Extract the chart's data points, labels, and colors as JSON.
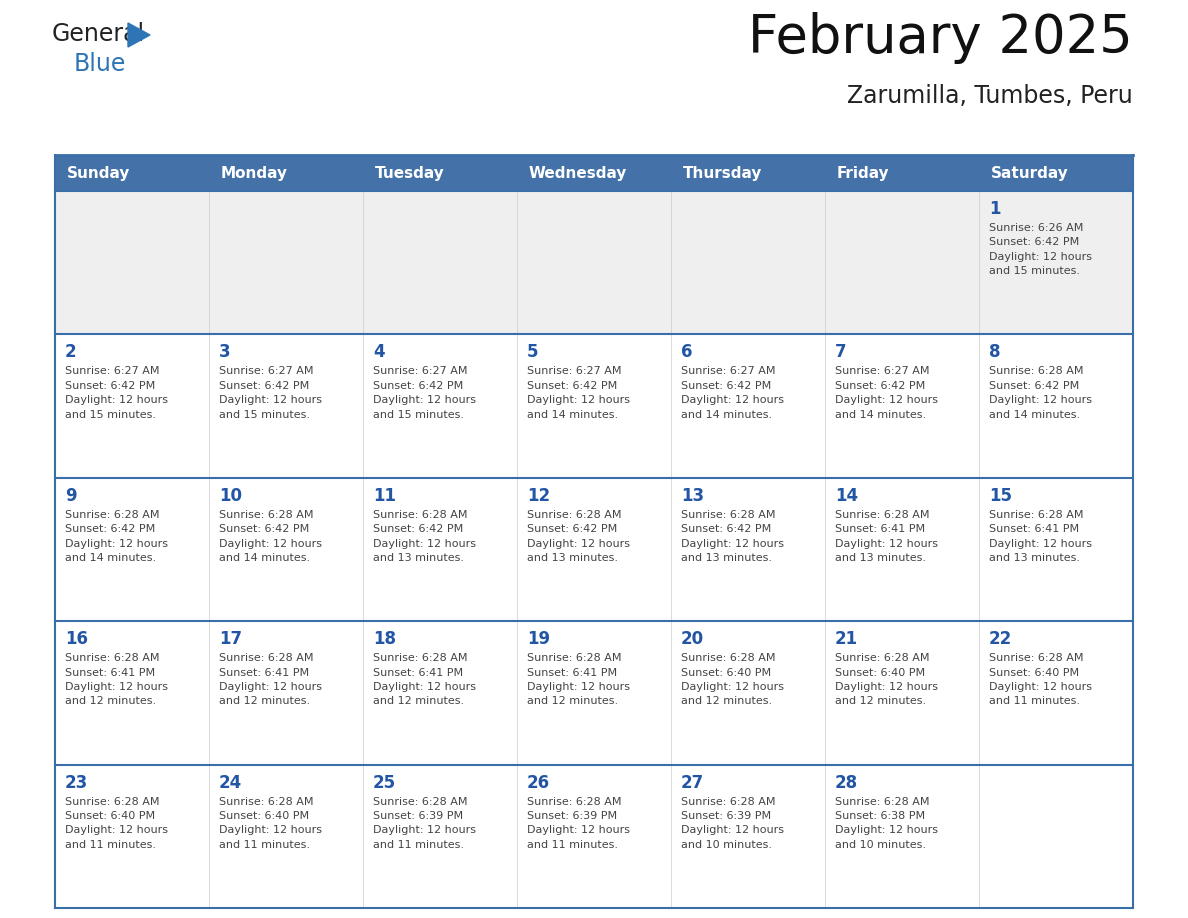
{
  "title": "February 2025",
  "subtitle": "Zarumilla, Tumbes, Peru",
  "days_of_week": [
    "Sunday",
    "Monday",
    "Tuesday",
    "Wednesday",
    "Thursday",
    "Friday",
    "Saturday"
  ],
  "header_bg": "#4472a8",
  "header_text": "#ffffff",
  "cell_bg_week1": "#efefef",
  "cell_bg_normal": "#ffffff",
  "day_number_color": "#2255a4",
  "text_color": "#444444",
  "border_color": "#3a6ea8",
  "sep_line_color": "#3a6ea8",
  "logo_triangle_color": "#2e75b6",
  "weeks": [
    [
      {
        "day": null,
        "info": null
      },
      {
        "day": null,
        "info": null
      },
      {
        "day": null,
        "info": null
      },
      {
        "day": null,
        "info": null
      },
      {
        "day": null,
        "info": null
      },
      {
        "day": null,
        "info": null
      },
      {
        "day": 1,
        "info": "Sunrise: 6:26 AM\nSunset: 6:42 PM\nDaylight: 12 hours\nand 15 minutes."
      }
    ],
    [
      {
        "day": 2,
        "info": "Sunrise: 6:27 AM\nSunset: 6:42 PM\nDaylight: 12 hours\nand 15 minutes."
      },
      {
        "day": 3,
        "info": "Sunrise: 6:27 AM\nSunset: 6:42 PM\nDaylight: 12 hours\nand 15 minutes."
      },
      {
        "day": 4,
        "info": "Sunrise: 6:27 AM\nSunset: 6:42 PM\nDaylight: 12 hours\nand 15 minutes."
      },
      {
        "day": 5,
        "info": "Sunrise: 6:27 AM\nSunset: 6:42 PM\nDaylight: 12 hours\nand 14 minutes."
      },
      {
        "day": 6,
        "info": "Sunrise: 6:27 AM\nSunset: 6:42 PM\nDaylight: 12 hours\nand 14 minutes."
      },
      {
        "day": 7,
        "info": "Sunrise: 6:27 AM\nSunset: 6:42 PM\nDaylight: 12 hours\nand 14 minutes."
      },
      {
        "day": 8,
        "info": "Sunrise: 6:28 AM\nSunset: 6:42 PM\nDaylight: 12 hours\nand 14 minutes."
      }
    ],
    [
      {
        "day": 9,
        "info": "Sunrise: 6:28 AM\nSunset: 6:42 PM\nDaylight: 12 hours\nand 14 minutes."
      },
      {
        "day": 10,
        "info": "Sunrise: 6:28 AM\nSunset: 6:42 PM\nDaylight: 12 hours\nand 14 minutes."
      },
      {
        "day": 11,
        "info": "Sunrise: 6:28 AM\nSunset: 6:42 PM\nDaylight: 12 hours\nand 13 minutes."
      },
      {
        "day": 12,
        "info": "Sunrise: 6:28 AM\nSunset: 6:42 PM\nDaylight: 12 hours\nand 13 minutes."
      },
      {
        "day": 13,
        "info": "Sunrise: 6:28 AM\nSunset: 6:42 PM\nDaylight: 12 hours\nand 13 minutes."
      },
      {
        "day": 14,
        "info": "Sunrise: 6:28 AM\nSunset: 6:41 PM\nDaylight: 12 hours\nand 13 minutes."
      },
      {
        "day": 15,
        "info": "Sunrise: 6:28 AM\nSunset: 6:41 PM\nDaylight: 12 hours\nand 13 minutes."
      }
    ],
    [
      {
        "day": 16,
        "info": "Sunrise: 6:28 AM\nSunset: 6:41 PM\nDaylight: 12 hours\nand 12 minutes."
      },
      {
        "day": 17,
        "info": "Sunrise: 6:28 AM\nSunset: 6:41 PM\nDaylight: 12 hours\nand 12 minutes."
      },
      {
        "day": 18,
        "info": "Sunrise: 6:28 AM\nSunset: 6:41 PM\nDaylight: 12 hours\nand 12 minutes."
      },
      {
        "day": 19,
        "info": "Sunrise: 6:28 AM\nSunset: 6:41 PM\nDaylight: 12 hours\nand 12 minutes."
      },
      {
        "day": 20,
        "info": "Sunrise: 6:28 AM\nSunset: 6:40 PM\nDaylight: 12 hours\nand 12 minutes."
      },
      {
        "day": 21,
        "info": "Sunrise: 6:28 AM\nSunset: 6:40 PM\nDaylight: 12 hours\nand 12 minutes."
      },
      {
        "day": 22,
        "info": "Sunrise: 6:28 AM\nSunset: 6:40 PM\nDaylight: 12 hours\nand 11 minutes."
      }
    ],
    [
      {
        "day": 23,
        "info": "Sunrise: 6:28 AM\nSunset: 6:40 PM\nDaylight: 12 hours\nand 11 minutes."
      },
      {
        "day": 24,
        "info": "Sunrise: 6:28 AM\nSunset: 6:40 PM\nDaylight: 12 hours\nand 11 minutes."
      },
      {
        "day": 25,
        "info": "Sunrise: 6:28 AM\nSunset: 6:39 PM\nDaylight: 12 hours\nand 11 minutes."
      },
      {
        "day": 26,
        "info": "Sunrise: 6:28 AM\nSunset: 6:39 PM\nDaylight: 12 hours\nand 11 minutes."
      },
      {
        "day": 27,
        "info": "Sunrise: 6:28 AM\nSunset: 6:39 PM\nDaylight: 12 hours\nand 10 minutes."
      },
      {
        "day": 28,
        "info": "Sunrise: 6:28 AM\nSunset: 6:38 PM\nDaylight: 12 hours\nand 10 minutes."
      },
      {
        "day": null,
        "info": null
      }
    ]
  ]
}
